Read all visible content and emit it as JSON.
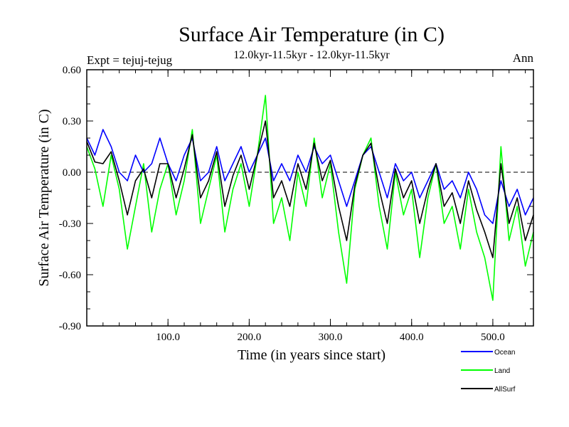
{
  "chart_data": {
    "type": "line",
    "title": "Surface Air Temperature (in C)",
    "subtitle": "12.0kyr-11.5kyr - 12.0kyr-11.5kyr",
    "expt_label": "Expt = tejuj-tejug",
    "season_label": "Ann",
    "xlabel": "Time (in years since start)",
    "ylabel": "Surface Air Temperature (in C)",
    "xlim": [
      0,
      550
    ],
    "ylim": [
      -0.9,
      0.6
    ],
    "x_ticks": [
      100,
      200,
      300,
      400,
      500
    ],
    "x_tick_labels": [
      "100.0",
      "200.0",
      "300.0",
      "400.0",
      "500.0"
    ],
    "y_ticks": [
      0.6,
      0.3,
      0.0,
      -0.3,
      -0.6,
      -0.9
    ],
    "y_tick_labels": [
      "0.60",
      "0.30",
      "0.00",
      "-0.30",
      "-0.60",
      "-0.90"
    ],
    "reference_line": 0.0,
    "x": [
      0,
      10,
      20,
      30,
      40,
      50,
      60,
      70,
      80,
      90,
      100,
      110,
      120,
      130,
      140,
      150,
      160,
      170,
      180,
      190,
      200,
      210,
      220,
      230,
      240,
      250,
      260,
      270,
      280,
      290,
      300,
      310,
      320,
      330,
      340,
      350,
      360,
      370,
      380,
      390,
      400,
      410,
      420,
      430,
      440,
      450,
      460,
      470,
      480,
      490,
      500,
      510,
      520,
      530,
      540,
      550
    ],
    "series": [
      {
        "name": "Land",
        "color": "#00ff00",
        "values": [
          0.15,
          0.02,
          -0.2,
          0.1,
          -0.1,
          -0.45,
          -0.2,
          0.05,
          -0.35,
          -0.1,
          0.05,
          -0.25,
          -0.05,
          0.25,
          -0.3,
          -0.1,
          0.1,
          -0.35,
          -0.1,
          0.05,
          -0.2,
          0.1,
          0.45,
          -0.3,
          -0.15,
          -0.4,
          0.0,
          -0.2,
          0.2,
          -0.15,
          0.05,
          -0.35,
          -0.65,
          -0.1,
          0.1,
          0.2,
          -0.2,
          -0.45,
          0.0,
          -0.25,
          -0.1,
          -0.5,
          -0.15,
          0.05,
          -0.3,
          -0.2,
          -0.45,
          -0.1,
          -0.35,
          -0.5,
          -0.75,
          0.15,
          -0.4,
          -0.2,
          -0.55,
          -0.35
        ]
      },
      {
        "name": "Ocean",
        "color": "#0000ff",
        "values": [
          0.2,
          0.1,
          0.25,
          0.15,
          0.0,
          -0.05,
          0.1,
          0.0,
          0.05,
          0.2,
          0.05,
          -0.05,
          0.1,
          0.2,
          -0.05,
          0.0,
          0.15,
          -0.05,
          0.05,
          0.15,
          0.0,
          0.1,
          0.2,
          -0.05,
          0.05,
          -0.05,
          0.1,
          0.0,
          0.15,
          0.05,
          0.1,
          -0.05,
          -0.2,
          -0.05,
          0.1,
          0.15,
          0.0,
          -0.15,
          0.05,
          -0.05,
          0.0,
          -0.15,
          -0.05,
          0.05,
          -0.1,
          -0.05,
          -0.15,
          0.0,
          -0.1,
          -0.25,
          -0.3,
          -0.05,
          -0.2,
          -0.1,
          -0.25,
          -0.15
        ]
      },
      {
        "name": "AllSurf",
        "color": "#000000",
        "values": [
          0.18,
          0.06,
          0.05,
          0.12,
          -0.05,
          -0.25,
          -0.05,
          0.02,
          -0.15,
          0.05,
          0.05,
          -0.15,
          0.02,
          0.22,
          -0.15,
          -0.05,
          0.12,
          -0.2,
          -0.02,
          0.1,
          -0.1,
          0.1,
          0.3,
          -0.15,
          -0.05,
          -0.2,
          0.05,
          -0.1,
          0.17,
          -0.05,
          0.07,
          -0.2,
          -0.4,
          -0.08,
          0.1,
          0.17,
          -0.1,
          -0.3,
          0.02,
          -0.15,
          -0.05,
          -0.3,
          -0.1,
          0.05,
          -0.2,
          -0.12,
          -0.3,
          -0.05,
          -0.22,
          -0.35,
          -0.5,
          0.05,
          -0.3,
          -0.15,
          -0.4,
          -0.25
        ]
      }
    ],
    "legend_position": "bottom-right"
  }
}
